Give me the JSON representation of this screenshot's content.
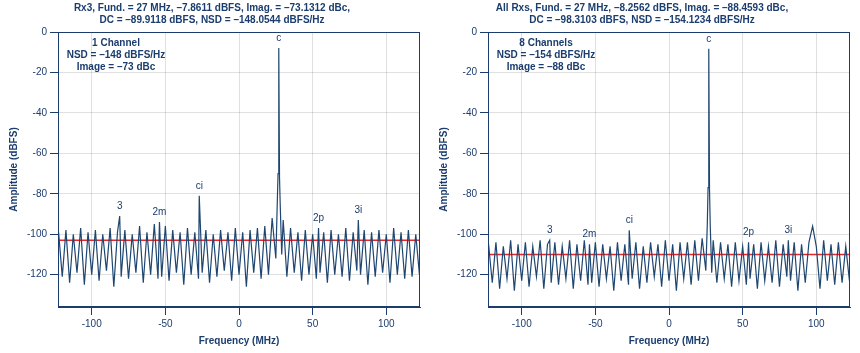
{
  "chart_data": [
    {
      "type": "line",
      "title": [
        "Rx3, Fund. = 27 MHz, –7.8611 dBFS, Imag. = –73.1312 dBc,",
        "DC = –89.9118 dBFS, NSD = –148.0544 dBFS/Hz"
      ],
      "annotation": [
        "1 Channel",
        "NSD = –148 dBFS/Hz",
        "Image = –73 dBc"
      ],
      "x_label": "Frequency (MHz)",
      "y_label": "Amplitude (dBFS)",
      "xlim": [
        -122.88,
        122.88
      ],
      "ylim": [
        -136,
        0
      ],
      "xticks": [
        -100,
        -50,
        0,
        50,
        100
      ],
      "yticks": [
        -120,
        -100,
        -80,
        -60,
        -40,
        -20,
        0
      ],
      "grid": true,
      "x": [
        -122.5,
        -120,
        -117.5,
        -115,
        -112.5,
        -110,
        -107.5,
        -105,
        -102.5,
        -100,
        -97.5,
        -95,
        -92.5,
        -90,
        -87.5,
        -85,
        -82.5,
        -81,
        -80,
        -77.5,
        -75,
        -72.5,
        -70,
        -67.5,
        -65,
        -62.5,
        -60,
        -57.5,
        -55,
        -54,
        -52.5,
        -50,
        -47.5,
        -45,
        -42.5,
        -40,
        -37.5,
        -35,
        -32.5,
        -30,
        -27.5,
        -27,
        -25,
        -22.5,
        -20,
        -17.5,
        -15,
        -12.5,
        -10,
        -7.5,
        -5,
        -2.5,
        0,
        2.5,
        5,
        7.5,
        10,
        12.5,
        15,
        17.5,
        20,
        22.5,
        25,
        26,
        26.5,
        27,
        27.5,
        28,
        29,
        30,
        32.5,
        35,
        37.5,
        40,
        42.5,
        45,
        47.5,
        50,
        52.5,
        54,
        55,
        57.5,
        60,
        62.5,
        65,
        67.5,
        70,
        72.5,
        75,
        77.5,
        80,
        81,
        82.5,
        85,
        87.5,
        90,
        92.5,
        95,
        97.5,
        100,
        102.5,
        105,
        107.5,
        110,
        112.5,
        115,
        117.5,
        120,
        122.5
      ],
      "series": [
        {
          "color": "#1f4670",
          "values": [
            -99,
            -121,
            -98,
            -124,
            -100,
            -119,
            -97,
            -125,
            -99,
            -120,
            -98,
            -123,
            -100,
            -118,
            -97,
            -126,
            -99,
            -91,
            -121,
            -98,
            -122,
            -100,
            -119,
            -96,
            -124,
            -99,
            -120,
            -95,
            -122,
            -94,
            -121,
            -96,
            -123,
            -98,
            -119,
            -99,
            -125,
            -97,
            -120,
            -99,
            -122,
            -81,
            -119,
            -98,
            -124,
            -100,
            -121,
            -98,
            -118,
            -99,
            -123,
            -97,
            -120,
            -99,
            -126,
            -98,
            -119,
            -97,
            -122,
            -96,
            -120,
            -92,
            -112,
            -84,
            -70,
            -7.9,
            -72,
            -86,
            -110,
            -93,
            -121,
            -97,
            -119,
            -99,
            -123,
            -98,
            -120,
            -100,
            -122,
            -97,
            -119,
            -99,
            -124,
            -98,
            -120,
            -100,
            -121,
            -97,
            -123,
            -99,
            -118,
            -93,
            -120,
            -98,
            -125,
            -99,
            -121,
            -98,
            -119,
            -100,
            -124,
            -97,
            -120,
            -99,
            -122,
            -98,
            -121,
            -100,
            -120
          ]
        }
      ],
      "reference_line": {
        "value": -103,
        "color": "#e8262a"
      },
      "markers": [
        {
          "label": "3",
          "x": -81
        },
        {
          "label": "2m",
          "x": -54
        },
        {
          "label": "ci",
          "x": -27
        },
        {
          "label": "c",
          "x": 27
        },
        {
          "label": "2p",
          "x": 54
        },
        {
          "label": "3i",
          "x": 81
        }
      ]
    },
    {
      "type": "line",
      "title": [
        "All Rxs, Fund. = 27 MHz, –8.2562 dBFS, Imag. = –88.4593 dBc,",
        "DC = –98.3103 dBFS, NSD = –154.1234 dBFS/Hz"
      ],
      "annotation": [
        "8 Channels",
        "NSD = –154 dBFS/Hz",
        "Image = –88 dBc"
      ],
      "x_label": "Frequency (MHz)",
      "y_label": "Amplitude (dBFS)",
      "xlim": [
        -122.88,
        122.88
      ],
      "ylim": [
        -136,
        0
      ],
      "xticks": [
        -100,
        -50,
        0,
        50,
        100
      ],
      "yticks": [
        -120,
        -100,
        -80,
        -60,
        -40,
        -20,
        0
      ],
      "grid": true,
      "x": [
        -122.5,
        -120,
        -117.5,
        -115,
        -112.5,
        -110,
        -107.5,
        -105,
        -102.5,
        -100,
        -97.5,
        -95,
        -92.5,
        -90,
        -87.5,
        -85,
        -82.5,
        -81,
        -80,
        -77.5,
        -75,
        -72.5,
        -70,
        -67.5,
        -65,
        -62.5,
        -60,
        -57.5,
        -55,
        -54,
        -52.5,
        -50,
        -47.5,
        -45,
        -42.5,
        -40,
        -37.5,
        -35,
        -32.5,
        -30,
        -27.5,
        -27,
        -25,
        -22.5,
        -20,
        -17.5,
        -15,
        -12.5,
        -10,
        -7.5,
        -5,
        -2.5,
        0,
        2.5,
        5,
        7.5,
        10,
        12.5,
        15,
        17.5,
        20,
        22.5,
        25,
        26,
        26.5,
        27,
        27.5,
        28,
        29,
        30,
        32.5,
        35,
        37.5,
        40,
        42.5,
        45,
        47.5,
        50,
        52.5,
        54,
        55,
        57.5,
        60,
        62.5,
        65,
        67.5,
        70,
        72.5,
        75,
        77.5,
        80,
        81,
        82.5,
        85,
        87.5,
        90,
        92.5,
        95,
        97.5,
        100,
        102.5,
        105,
        107.5,
        110,
        112.5,
        115,
        117.5,
        120,
        122.5
      ],
      "series": [
        {
          "color": "#1f4670",
          "values": [
            -105,
            -124,
            -104,
            -127,
            -106,
            -122,
            -103,
            -128,
            -105,
            -123,
            -104,
            -126,
            -106,
            -121,
            -103,
            -127,
            -105,
            -103,
            -124,
            -104,
            -125,
            -106,
            -122,
            -103,
            -127,
            -105,
            -123,
            -103,
            -125,
            -105,
            -124,
            -104,
            -126,
            -105,
            -122,
            -106,
            -128,
            -104,
            -123,
            -105,
            -125,
            -98,
            -122,
            -104,
            -127,
            -106,
            -124,
            -104,
            -121,
            -105,
            -126,
            -103,
            -123,
            -105,
            -128,
            -104,
            -122,
            -104,
            -125,
            -103,
            -123,
            -102,
            -118,
            -95,
            -77,
            -8.3,
            -78,
            -96,
            -119,
            -103,
            -124,
            -104,
            -122,
            -105,
            -126,
            -104,
            -123,
            -106,
            -125,
            -104,
            -122,
            -105,
            -127,
            -104,
            -123,
            -106,
            -124,
            -103,
            -126,
            -105,
            -121,
            -103,
            -123,
            -104,
            -128,
            -105,
            -124,
            -104,
            -96,
            -106,
            -127,
            -103,
            -123,
            -105,
            -125,
            -104,
            -124,
            -106,
            -123
          ]
        }
      ],
      "reference_line": {
        "value": -110,
        "color": "#e8262a"
      },
      "markers": [
        {
          "label": "3",
          "x": -81
        },
        {
          "label": "2m",
          "x": -54
        },
        {
          "label": "ci",
          "x": -27
        },
        {
          "label": "c",
          "x": 27
        },
        {
          "label": "2p",
          "x": 54
        },
        {
          "label": "3i",
          "x": 81
        }
      ]
    }
  ]
}
